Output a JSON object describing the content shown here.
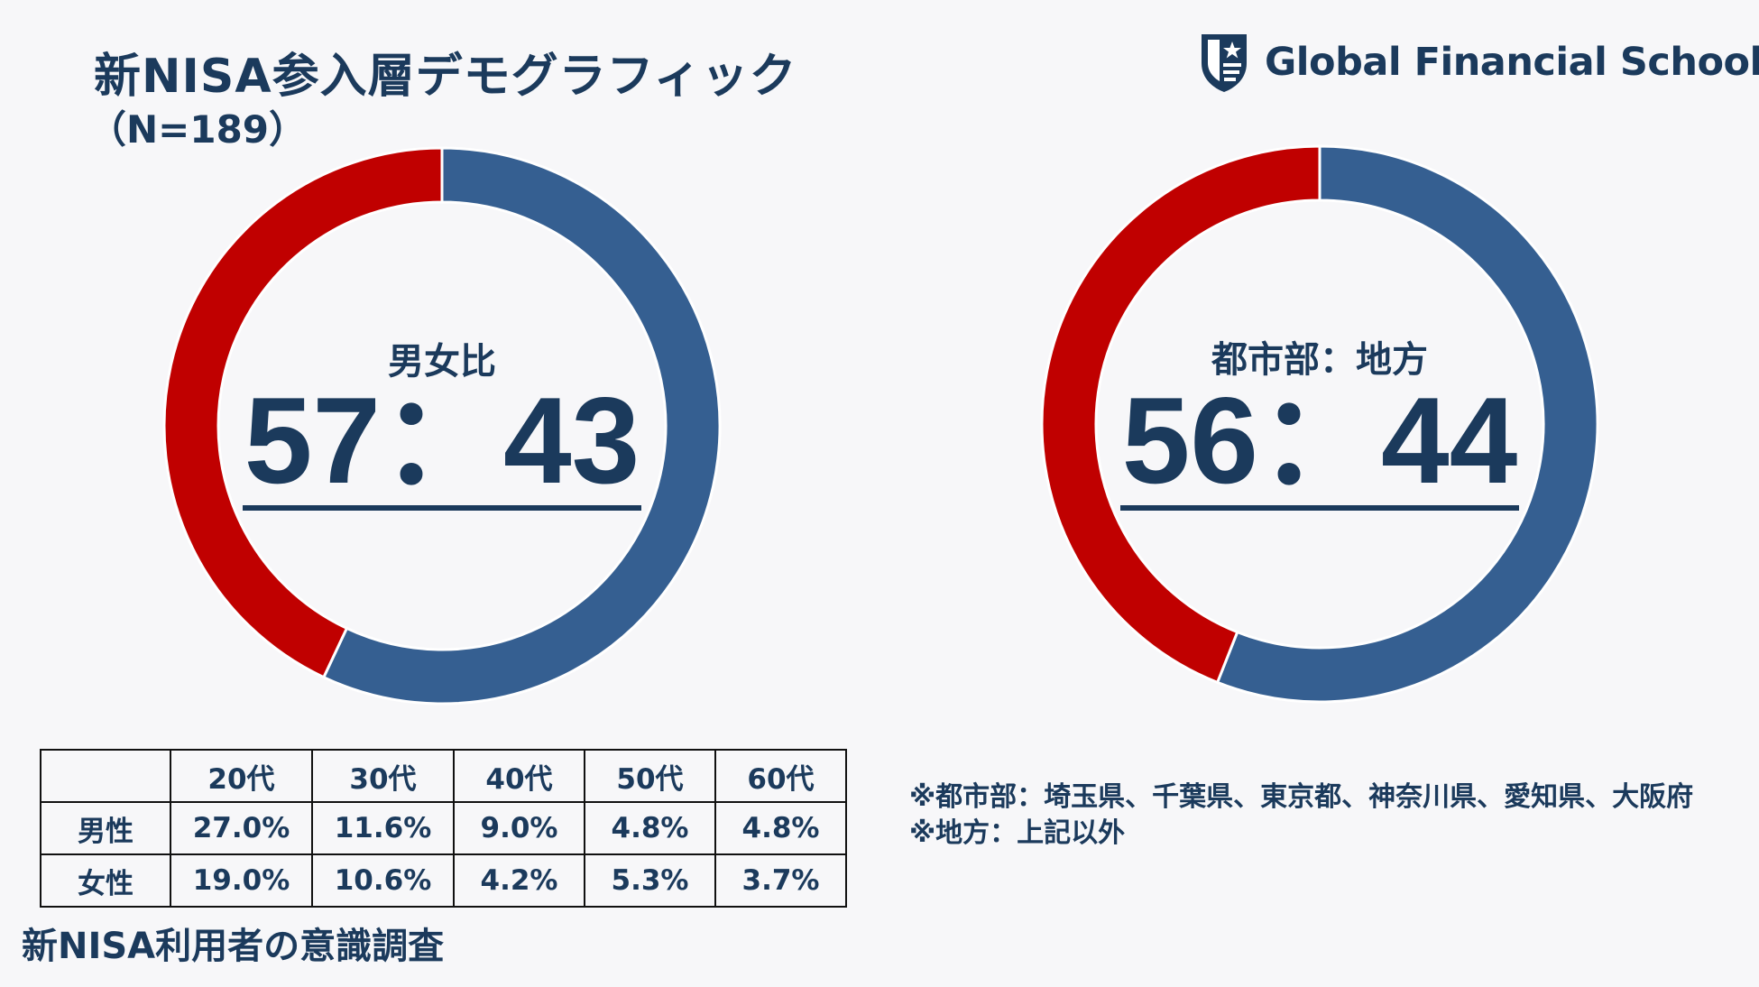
{
  "header": {
    "title": "新NISA参入層デモグラフィック",
    "subtitle": "（N=189）",
    "brand_name": "Global Financial School",
    "brand_icon": "shield-star-icon"
  },
  "colors": {
    "blue": "#355f91",
    "red": "#c00000",
    "text": "#1b3a5c"
  },
  "chart_data": [
    {
      "type": "pie",
      "variant": "donut",
      "title": "男女比",
      "ratio_text": "57：43",
      "slices": [
        {
          "value": 57,
          "color": "#355f91"
        },
        {
          "value": 43,
          "color": "#c00000"
        }
      ]
    },
    {
      "type": "pie",
      "variant": "donut",
      "title": "都市部：地方",
      "ratio_text": "56：44",
      "slices": [
        {
          "value": 56,
          "color": "#355f91"
        },
        {
          "value": 44,
          "color": "#c00000"
        }
      ]
    },
    {
      "type": "table",
      "columns": [
        "",
        "20代",
        "30代",
        "40代",
        "50代",
        "60代"
      ],
      "rows": [
        {
          "label": "男性",
          "values": [
            "27.0%",
            "11.6%",
            "9.0%",
            "4.8%",
            "4.8%"
          ]
        },
        {
          "label": "女性",
          "values": [
            "19.0%",
            "10.6%",
            "4.2%",
            "5.3%",
            "3.7%"
          ]
        }
      ]
    }
  ],
  "notes": [
    "※都市部：埼玉県、千葉県、東京都、神奈川県、愛知県、大阪府",
    "※地方：上記以外"
  ],
  "footer": "新NISA利用者の意識調査"
}
